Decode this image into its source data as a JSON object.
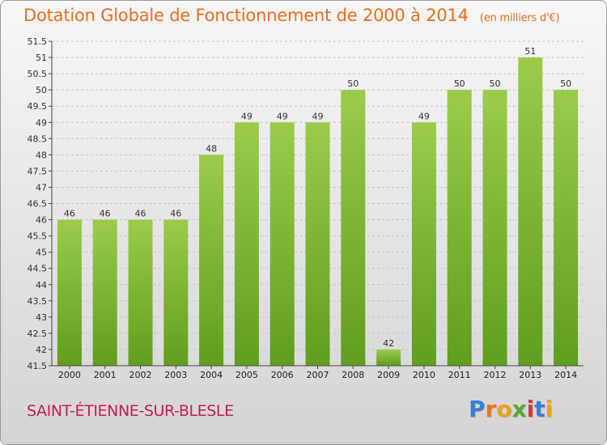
{
  "header": {
    "title": "Dotation Globale de Fonctionnement de 2000 à 2014",
    "units": "(en milliers d'€)"
  },
  "footer": {
    "commune": "SAINT-ÉTIENNE-SUR-BLESLE",
    "logo": [
      "P",
      "r",
      "o",
      "x",
      "i",
      "t",
      "i"
    ]
  },
  "colors": {
    "title": "#ef6d1c",
    "commune": "#c21e55",
    "bar_top": "#9ccb4a",
    "bar_bottom": "#5f9e1e",
    "logo": [
      "#3c7fd1",
      "#e8772a",
      "#e8a41f",
      "#5aa832",
      "#d43b3b",
      "#3c7fd1",
      "#e8a41f"
    ]
  },
  "chart_data": {
    "type": "bar",
    "categories": [
      "2000",
      "2001",
      "2002",
      "2003",
      "2004",
      "2005",
      "2006",
      "2007",
      "2008",
      "2009",
      "2010",
      "2011",
      "2012",
      "2013",
      "2014"
    ],
    "values": [
      46,
      46,
      46,
      46,
      48,
      49,
      49,
      49,
      50,
      42,
      49,
      50,
      50,
      51,
      50
    ],
    "data_labels": [
      "46",
      "46",
      "46",
      "46",
      "48",
      "49",
      "49",
      "49",
      "50",
      "42",
      "49",
      "50",
      "50",
      "51",
      "50"
    ],
    "title": "Dotation Globale de Fonctionnement de 2000 à 2014",
    "ylim": [
      41.5,
      51.5
    ],
    "yticks": [
      "41.5",
      "42",
      "42.5",
      "43",
      "43.5",
      "44",
      "44.5",
      "45",
      "45.5",
      "46",
      "46.5",
      "47",
      "47.5",
      "48",
      "48.5",
      "49",
      "49.5",
      "50",
      "50.5",
      "51",
      "51.5"
    ],
    "grid": true,
    "legend": "none"
  }
}
